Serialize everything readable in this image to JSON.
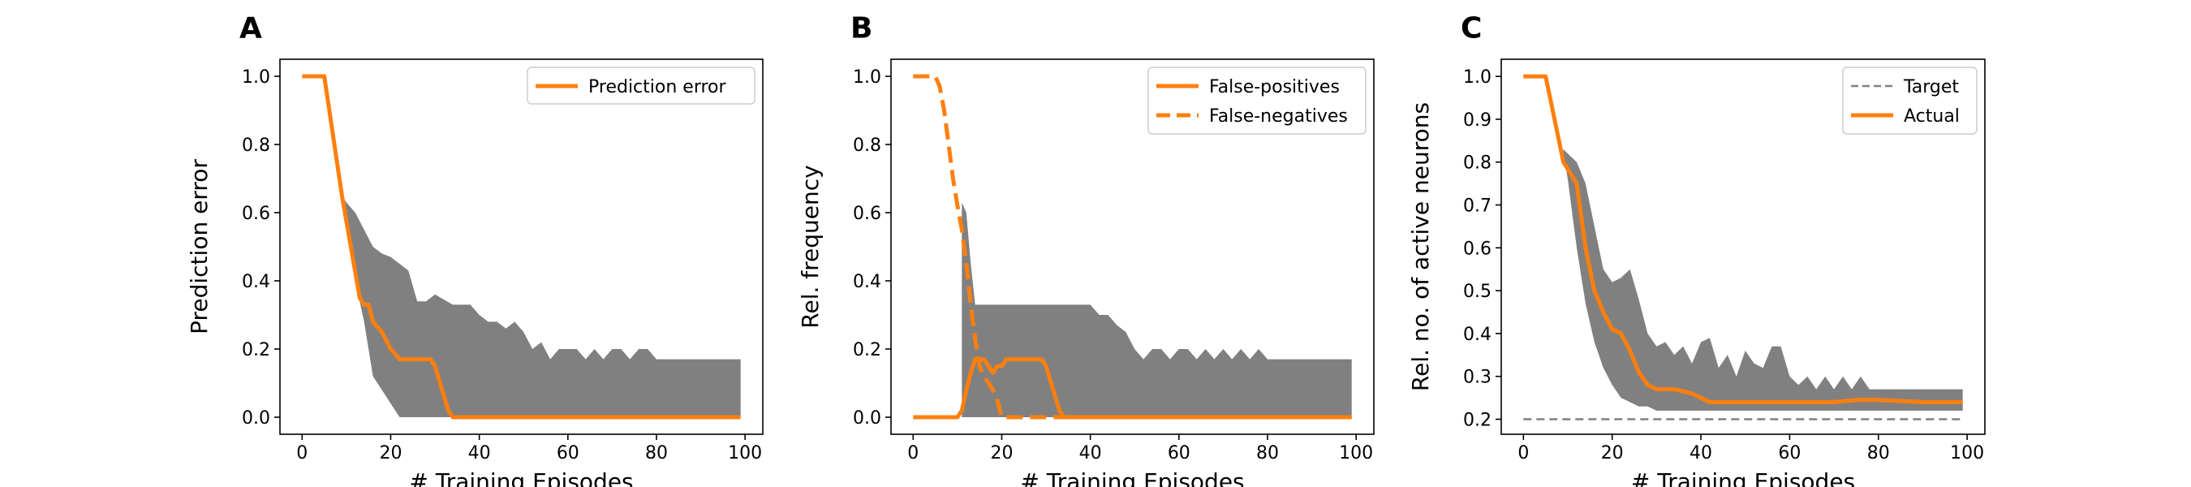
{
  "chart_data": [
    {
      "panel": "A",
      "type": "line",
      "xlabel": "# Training Episodes",
      "ylabel": "Prediction error",
      "xlim": [
        -5,
        104
      ],
      "ylim": [
        -0.05,
        1.05
      ],
      "xticks": [
        0,
        20,
        40,
        60,
        80,
        100
      ],
      "xtick_labels": [
        "0",
        "20",
        "40",
        "60",
        "80",
        "100"
      ],
      "yticks": [
        0.0,
        0.2,
        0.4,
        0.6,
        0.8,
        1.0
      ],
      "ytick_labels": [
        "0.0",
        "0.2",
        "0.4",
        "0.6",
        "0.8",
        "1.0"
      ],
      "legend": {
        "location": "top-right",
        "entries": [
          {
            "label": "Prediction error",
            "style": "solid",
            "color": "#ff7f0e"
          }
        ]
      },
      "band": {
        "color": "#808080",
        "x": [
          9,
          10,
          12,
          14,
          16,
          18,
          20,
          22,
          24,
          26,
          28,
          30,
          34,
          38,
          40,
          42,
          44,
          46,
          48,
          50,
          52,
          54,
          56,
          58,
          60,
          62,
          64,
          66,
          68,
          70,
          72,
          74,
          76,
          78,
          80,
          99
        ],
        "upper": [
          0.65,
          0.63,
          0.6,
          0.55,
          0.5,
          0.48,
          0.47,
          0.45,
          0.43,
          0.34,
          0.34,
          0.36,
          0.33,
          0.33,
          0.3,
          0.28,
          0.28,
          0.26,
          0.28,
          0.25,
          0.2,
          0.22,
          0.17,
          0.2,
          0.2,
          0.2,
          0.17,
          0.2,
          0.17,
          0.2,
          0.2,
          0.17,
          0.2,
          0.2,
          0.17,
          0.17
        ],
        "lower": [
          0.65,
          0.55,
          0.4,
          0.28,
          0.12,
          0.08,
          0.04,
          0.0,
          0.0,
          0.0,
          0.0,
          0.0,
          0.0,
          0.0,
          0.0,
          0.0,
          0.0,
          0.0,
          0.0,
          0.0,
          0.0,
          0.0,
          0.0,
          0.0,
          0.0,
          0.0,
          0.0,
          0.0,
          0.0,
          0.0,
          0.0,
          0.0,
          0.0,
          0.0,
          0.0,
          0.0
        ]
      },
      "series": [
        {
          "name": "Prediction error",
          "color": "#ff7f0e",
          "dash": "solid",
          "x": [
            0,
            5,
            9,
            11,
            13,
            14,
            15,
            16,
            18,
            20,
            22,
            29,
            30,
            33,
            34,
            99
          ],
          "y": [
            1.0,
            1.0,
            0.65,
            0.5,
            0.35,
            0.33,
            0.33,
            0.28,
            0.25,
            0.2,
            0.17,
            0.17,
            0.15,
            0.02,
            0.0,
            0.0
          ]
        }
      ]
    },
    {
      "panel": "B",
      "type": "line",
      "xlabel": "# Training Episodes",
      "ylabel": "Rel. frequency",
      "xlim": [
        -5,
        104
      ],
      "ylim": [
        -0.05,
        1.05
      ],
      "xticks": [
        0,
        20,
        40,
        60,
        80,
        100
      ],
      "xtick_labels": [
        "0",
        "20",
        "40",
        "60",
        "80",
        "100"
      ],
      "yticks": [
        0.0,
        0.2,
        0.4,
        0.6,
        0.8,
        1.0
      ],
      "ytick_labels": [
        "0.0",
        "0.2",
        "0.4",
        "0.6",
        "0.8",
        "1.0"
      ],
      "legend": {
        "location": "top-right",
        "entries": [
          {
            "label": "False-positives",
            "style": "solid",
            "color": "#ff7f0e"
          },
          {
            "label": "False-negatives",
            "style": "dashed",
            "color": "#ff7f0e"
          }
        ]
      },
      "band": {
        "color": "#808080",
        "x": [
          11,
          12,
          13,
          14,
          15,
          16,
          17,
          40,
          42,
          44,
          46,
          48,
          50,
          52,
          54,
          56,
          58,
          60,
          62,
          64,
          66,
          68,
          70,
          72,
          74,
          76,
          78,
          80,
          99
        ],
        "upper": [
          0.63,
          0.6,
          0.45,
          0.33,
          0.33,
          0.33,
          0.33,
          0.33,
          0.3,
          0.3,
          0.27,
          0.25,
          0.2,
          0.17,
          0.2,
          0.2,
          0.17,
          0.2,
          0.2,
          0.17,
          0.2,
          0.17,
          0.2,
          0.17,
          0.2,
          0.17,
          0.2,
          0.17,
          0.17
        ],
        "lower": [
          0.0,
          0.0,
          0.0,
          0.0,
          0.0,
          0.0,
          0.0,
          0.0,
          0.0,
          0.0,
          0.0,
          0.0,
          0.0,
          0.0,
          0.0,
          0.0,
          0.0,
          0.0,
          0.0,
          0.0,
          0.0,
          0.0,
          0.0,
          0.0,
          0.0,
          0.0,
          0.0,
          0.0,
          0.0
        ]
      },
      "series": [
        {
          "name": "False-positives",
          "color": "#ff7f0e",
          "dash": "solid",
          "x": [
            0,
            10,
            11,
            12,
            13,
            14,
            16,
            17,
            18,
            19,
            20,
            21,
            22,
            23,
            29,
            30,
            33,
            34,
            99
          ],
          "y": [
            0.0,
            0.0,
            0.02,
            0.08,
            0.13,
            0.17,
            0.17,
            0.15,
            0.13,
            0.15,
            0.15,
            0.17,
            0.17,
            0.17,
            0.17,
            0.15,
            0.02,
            0.0,
            0.0
          ]
        },
        {
          "name": "False-negatives",
          "color": "#ff7f0e",
          "dash": "dashed",
          "x": [
            0,
            5,
            6,
            7,
            8,
            9,
            10,
            11,
            12,
            13,
            14,
            15,
            16,
            17,
            18,
            19,
            20,
            21,
            99
          ],
          "y": [
            1.0,
            1.0,
            0.97,
            0.9,
            0.8,
            0.7,
            0.62,
            0.55,
            0.45,
            0.33,
            0.23,
            0.15,
            0.12,
            0.1,
            0.08,
            0.05,
            0.0,
            0.0,
            0.0
          ]
        }
      ]
    },
    {
      "panel": "C",
      "type": "line",
      "xlabel": "# Training Episodes",
      "ylabel": "Rel. no. of active neurons",
      "xlim": [
        -5,
        104
      ],
      "ylim": [
        0.165,
        1.04
      ],
      "xticks": [
        0,
        20,
        40,
        60,
        80,
        100
      ],
      "xtick_labels": [
        "0",
        "20",
        "40",
        "60",
        "80",
        "100"
      ],
      "yticks": [
        0.2,
        0.3,
        0.4,
        0.5,
        0.6,
        0.7,
        0.8,
        0.9,
        1.0
      ],
      "ytick_labels": [
        "0.2",
        "0.3",
        "0.4",
        "0.5",
        "0.6",
        "0.7",
        "0.8",
        "0.9",
        "1.0"
      ],
      "legend": {
        "location": "top-right",
        "entries": [
          {
            "label": "Target",
            "style": "dashed",
            "color": "#808080"
          },
          {
            "label": "Actual",
            "style": "solid",
            "color": "#ff7f0e"
          }
        ]
      },
      "band": {
        "color": "#808080",
        "x": [
          9,
          10,
          12,
          14,
          16,
          18,
          20,
          22,
          24,
          26,
          28,
          30,
          32,
          34,
          36,
          38,
          40,
          42,
          44,
          46,
          48,
          50,
          52,
          54,
          56,
          58,
          60,
          62,
          64,
          66,
          68,
          70,
          72,
          74,
          76,
          78,
          80,
          99
        ],
        "upper": [
          0.83,
          0.82,
          0.8,
          0.75,
          0.65,
          0.55,
          0.52,
          0.53,
          0.55,
          0.48,
          0.4,
          0.37,
          0.38,
          0.35,
          0.37,
          0.33,
          0.38,
          0.39,
          0.32,
          0.35,
          0.3,
          0.36,
          0.33,
          0.32,
          0.37,
          0.37,
          0.3,
          0.28,
          0.3,
          0.27,
          0.3,
          0.27,
          0.3,
          0.27,
          0.3,
          0.27,
          0.27,
          0.27
        ],
        "lower": [
          0.82,
          0.76,
          0.6,
          0.47,
          0.38,
          0.32,
          0.28,
          0.25,
          0.24,
          0.23,
          0.23,
          0.22,
          0.22,
          0.22,
          0.22,
          0.22,
          0.22,
          0.22,
          0.22,
          0.22,
          0.22,
          0.22,
          0.22,
          0.22,
          0.22,
          0.22,
          0.22,
          0.22,
          0.22,
          0.22,
          0.22,
          0.22,
          0.22,
          0.22,
          0.22,
          0.22,
          0.22,
          0.22
        ]
      },
      "series": [
        {
          "name": "Target",
          "color": "#808080",
          "dash": "dashed",
          "x": [
            0,
            99
          ],
          "y": [
            0.2,
            0.2
          ]
        },
        {
          "name": "Actual",
          "color": "#ff7f0e",
          "dash": "solid",
          "x": [
            0,
            5,
            9,
            12,
            14,
            16,
            18,
            20,
            22,
            24,
            26,
            28,
            30,
            34,
            38,
            40,
            42,
            50,
            60,
            70,
            75,
            80,
            90,
            99
          ],
          "y": [
            1.0,
            1.0,
            0.8,
            0.75,
            0.6,
            0.5,
            0.45,
            0.41,
            0.4,
            0.36,
            0.31,
            0.28,
            0.27,
            0.27,
            0.26,
            0.25,
            0.24,
            0.24,
            0.24,
            0.24,
            0.245,
            0.245,
            0.24,
            0.24
          ]
        }
      ]
    }
  ]
}
